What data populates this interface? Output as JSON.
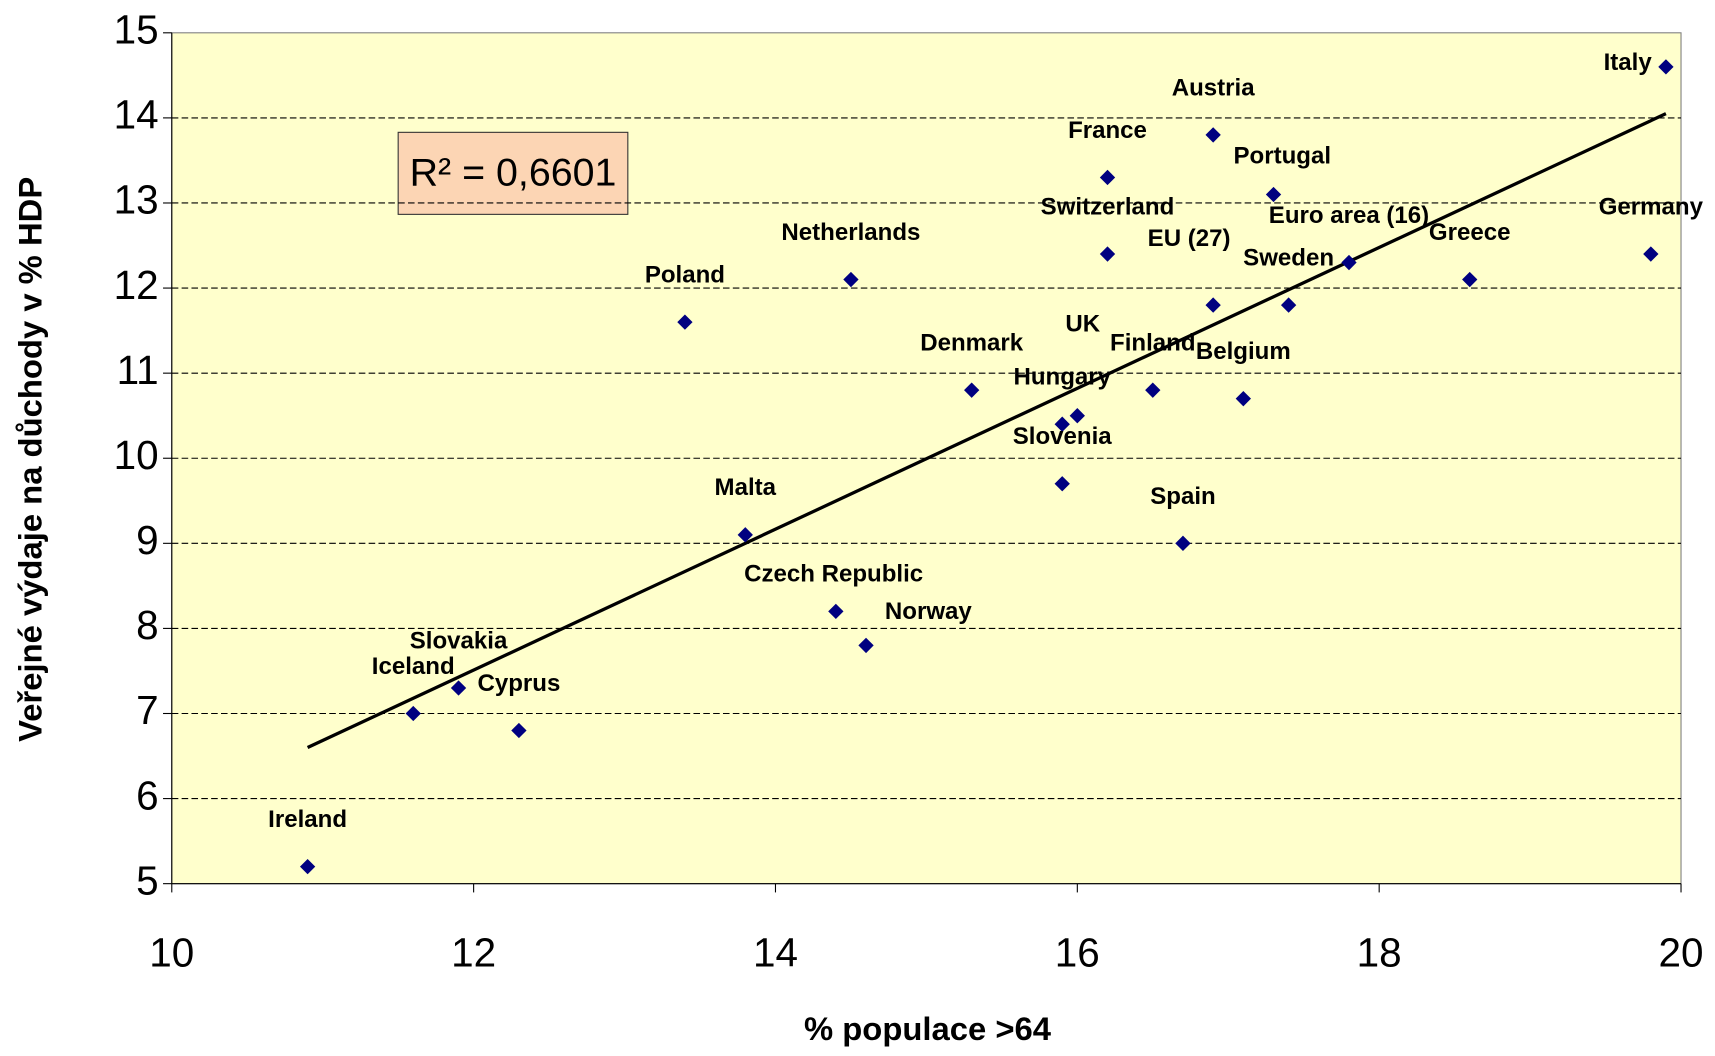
{
  "chart_data": {
    "type": "scatter",
    "xlabel": "% populace >64",
    "ylabel": "Veřejné výdaje na důchody v % HDP",
    "annotation": "R² = 0,6601",
    "labels": [
      "Italy",
      "Austria",
      "France",
      "Portugal",
      "Switzerland",
      "Euro area (16)",
      "Germany",
      "Netherlands",
      "Greece",
      "Poland",
      "EU (27)",
      "Sweden",
      "Denmark",
      "Finland",
      "Belgium",
      "Hungary",
      "UK",
      "Slovenia",
      "Spain",
      "Malta",
      "Czech Republic",
      "Norway",
      "Slovakia",
      "Iceland",
      "Cyprus",
      "Ireland"
    ],
    "x": [
      19.9,
      16.9,
      16.2,
      17.3,
      16.2,
      17.8,
      19.8,
      14.5,
      18.6,
      13.4,
      16.9,
      17.4,
      15.3,
      16.5,
      17.1,
      15.9,
      16.0,
      15.9,
      16.7,
      13.8,
      14.4,
      14.6,
      11.9,
      11.6,
      12.3,
      10.9
    ],
    "values": [
      14.6,
      13.8,
      13.3,
      13.1,
      12.4,
      12.3,
      12.4,
      12.1,
      12.1,
      11.6,
      11.8,
      11.8,
      10.8,
      10.8,
      10.7,
      10.4,
      10.5,
      9.7,
      9.0,
      9.1,
      8.2,
      7.8,
      7.3,
      7.0,
      6.8,
      5.2
    ],
    "color": "#000080",
    "trendline": {
      "x": [
        10.9,
        19.9
      ],
      "values": [
        6.6,
        14.05
      ],
      "color": "#000000"
    },
    "xlim": [
      10,
      20
    ],
    "xticks": [
      10,
      12,
      14,
      16,
      18,
      20
    ],
    "ylim": [
      5,
      15
    ],
    "yticks": [
      5,
      6,
      7,
      8,
      9,
      10,
      11,
      12,
      13,
      14,
      15
    ],
    "grid": true,
    "background": "#ffffcc"
  }
}
